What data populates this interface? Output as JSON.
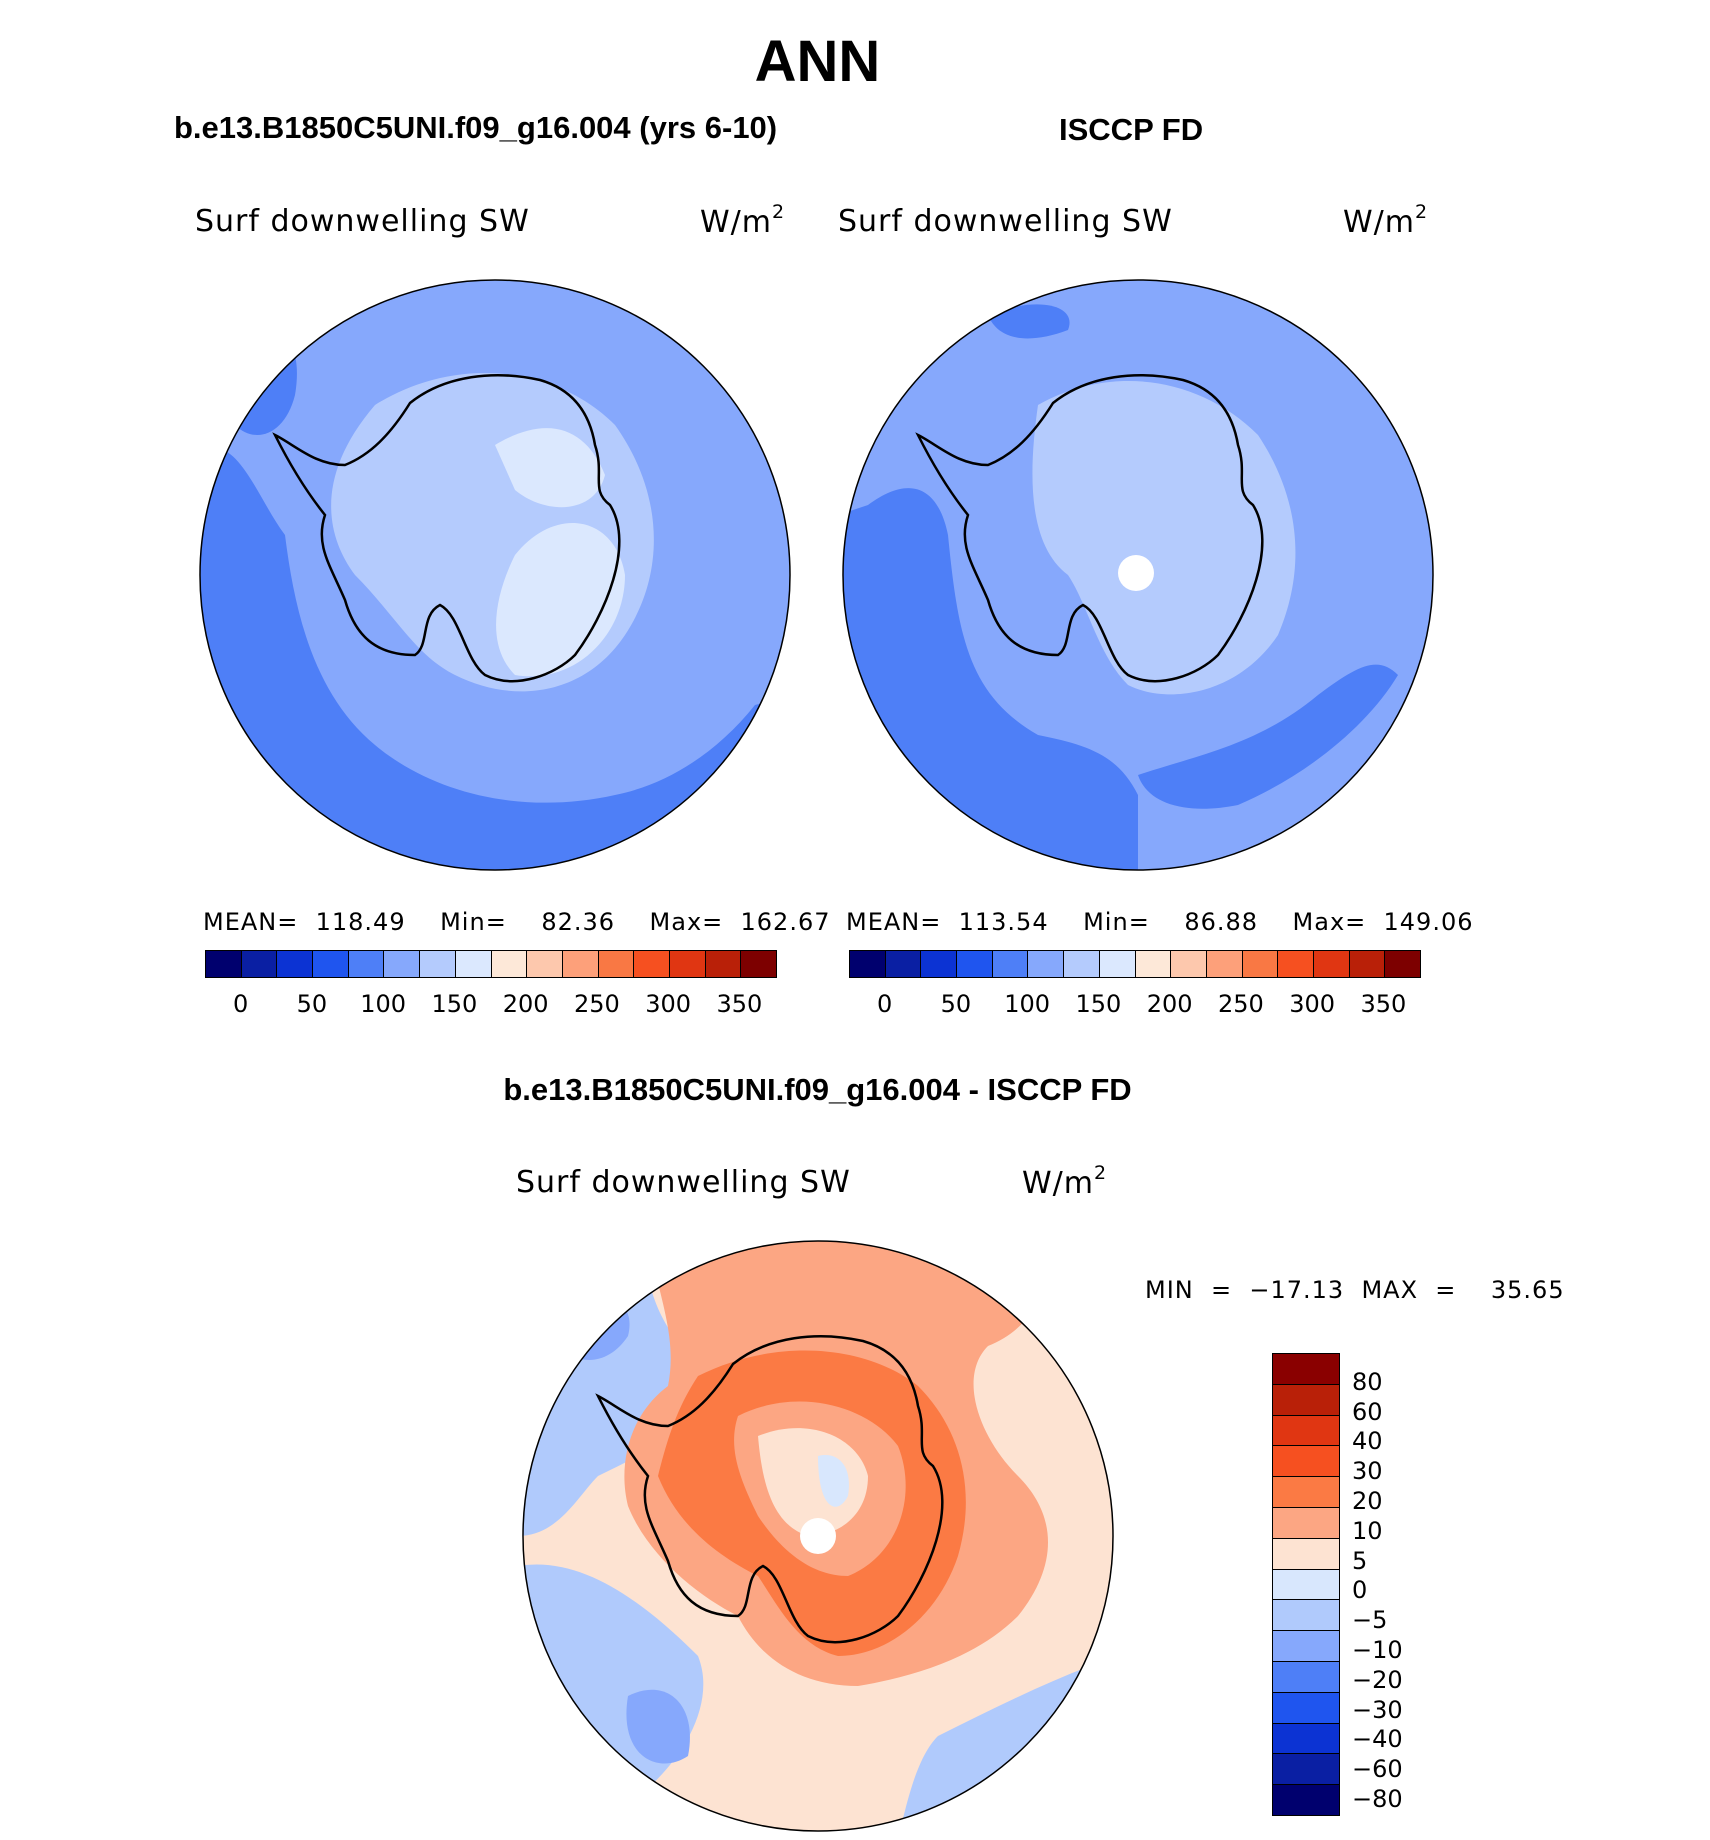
{
  "page_title": "ANN",
  "left_panel": {
    "case_title": "b.e13.B1850C5UNI.f09_g16.004 (yrs 6-10)",
    "var_label": "Surf  downwelling  SW",
    "units_base": "W/m",
    "units_sup": "2",
    "stats": "MEAN=  118.49    Min=    82.36    Max=  162.67"
  },
  "right_panel": {
    "case_title": "ISCCP FD",
    "var_label": "Surf  downwelling  SW",
    "units_base": "W/m",
    "units_sup": "2",
    "stats": "MEAN=  113.54    Min=    86.88    Max=  149.06"
  },
  "diff_panel": {
    "case_title": "b.e13.B1850C5UNI.f09_g16.004 - ISCCP FD",
    "var_label": "Surf  downwelling  SW",
    "units_base": "W/m",
    "units_sup": "2",
    "stats": "MIN  =  −17.13  MAX  =    35.65"
  },
  "colors": {
    "abs_scale": [
      "#00006e",
      "#0a1fa3",
      "#0c33d3",
      "#1f55ef",
      "#4e7ff7",
      "#86a8fc",
      "#b4cbfd",
      "#dbe8fe",
      "#fde8d8",
      "#fdc8ad",
      "#fda07a",
      "#f97844",
      "#f65020",
      "#e03612",
      "#b92008",
      "#7d0000"
    ],
    "diff_scale": [
      "#8a0000",
      "#b92008",
      "#e03612",
      "#f65020",
      "#fb7a44",
      "#fca683",
      "#fde3d2",
      "#d8e7fd",
      "#b0cafc",
      "#86a8fc",
      "#4e7ff7",
      "#1f55ef",
      "#0c33d3",
      "#0a1fa3",
      "#00006e"
    ]
  },
  "chart_data": [
    {
      "type": "heatmap",
      "subtype": "polar-stereographic contour map (Antarctica)",
      "title": "b.e13.B1850C5UNI.f09_g16.004 (yrs 6-10)",
      "variable": "Surf downwelling SW",
      "units": "W/m2",
      "mean": 118.49,
      "min": 82.36,
      "max": 162.67,
      "colorbar_ticks": [
        "0",
        "50",
        "100",
        "150",
        "200",
        "250",
        "300",
        "350"
      ]
    },
    {
      "type": "heatmap",
      "subtype": "polar-stereographic contour map (Antarctica)",
      "title": "ISCCP FD",
      "variable": "Surf downwelling SW",
      "units": "W/m2",
      "mean": 113.54,
      "min": 86.88,
      "max": 149.06,
      "colorbar_ticks": [
        "0",
        "50",
        "100",
        "150",
        "200",
        "250",
        "300",
        "350"
      ]
    },
    {
      "type": "heatmap",
      "subtype": "polar-stereographic contour map (difference)",
      "title": "b.e13.B1850C5UNI.f09_g16.004 - ISCCP FD",
      "variable": "Surf downwelling SW",
      "units": "W/m2",
      "min": -17.13,
      "max": 35.65,
      "colorbar_ticks": [
        "80",
        "60",
        "40",
        "30",
        "20",
        "10",
        "5",
        "0",
        "−5",
        "−10",
        "−20",
        "−30",
        "−40",
        "−60",
        "−80"
      ]
    }
  ]
}
